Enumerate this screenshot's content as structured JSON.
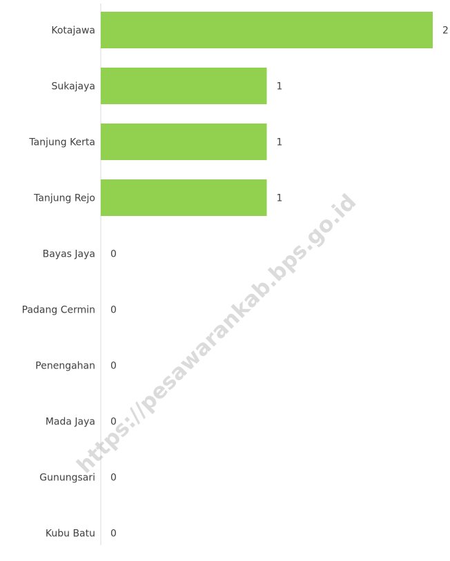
{
  "chart_data": {
    "type": "bar",
    "orientation": "horizontal",
    "categories": [
      "Kotajawa",
      "Sukajaya",
      "Tanjung Kerta",
      "Tanjung Rejo",
      "Bayas Jaya",
      "Padang Cermin",
      "Penengahan",
      "Mada Jaya",
      "Gunungsari",
      "Kubu Batu"
    ],
    "values": [
      2,
      1,
      1,
      1,
      0,
      0,
      0,
      0,
      0,
      0
    ],
    "color": "#92d050",
    "xlim": [
      0,
      2
    ],
    "watermark": "https://pesawarankab.bps.go.id"
  }
}
